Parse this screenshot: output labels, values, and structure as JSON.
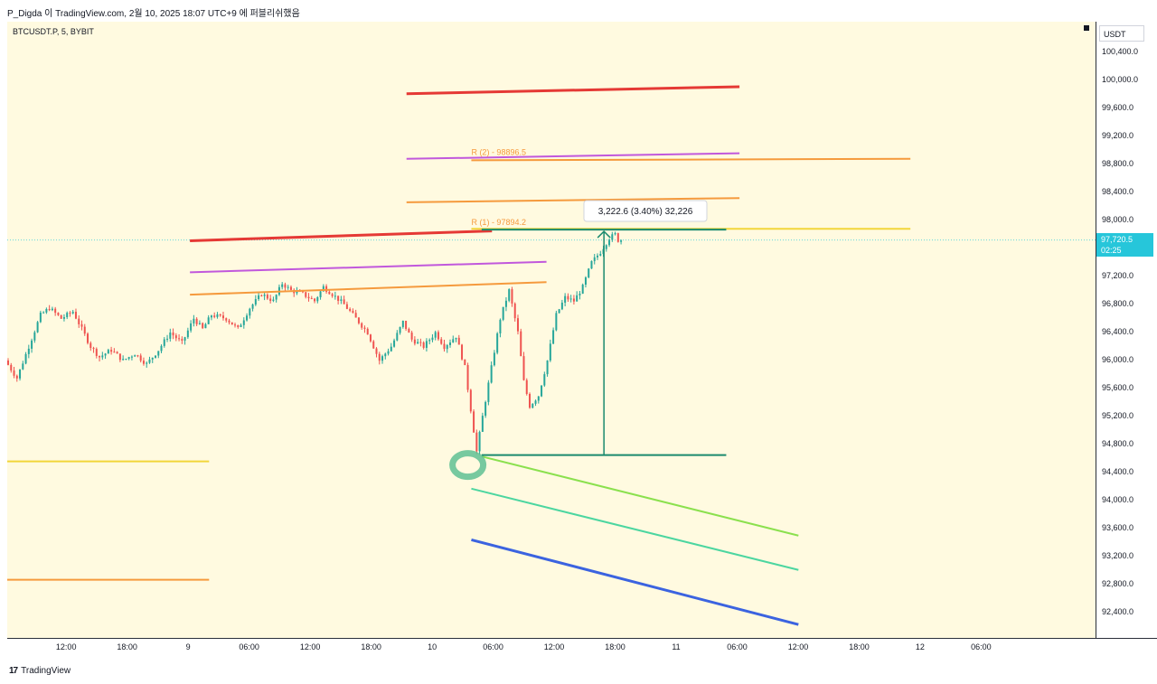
{
  "header": {
    "caption": "P_Digda 이 TradingView.com, 2월 10, 2025 18:07 UTC+9 에 퍼블리쉬했음"
  },
  "chart_header": {
    "symbol": "BTCUSDT.P, 5, BYBIT"
  },
  "footer": {
    "brand": "TradingView",
    "logo": "tv-logo-icon"
  },
  "price_axis": {
    "unit": "USDT",
    "ticks": [
      "100,400.0",
      "100,000.0",
      "99,600.0",
      "99,200.0",
      "98,800.0",
      "98,400.0",
      "98,000.0",
      "97,600.0",
      "97,200.0",
      "96,800.0",
      "96,400.0",
      "96,000.0",
      "95,600.0",
      "95,200.0",
      "94,800.0",
      "94,400.0",
      "94,000.0",
      "93,600.0",
      "93,200.0",
      "92,800.0",
      "92,400.0"
    ],
    "last_price": "97,720.5",
    "countdown": "02:25"
  },
  "time_axis": {
    "ticks": [
      "12:00",
      "18:00",
      "9",
      "06:00",
      "12:00",
      "18:00",
      "10",
      "06:00",
      "12:00",
      "18:00",
      "11",
      "06:00",
      "12:00",
      "18:00",
      "12",
      "06:00"
    ]
  },
  "colors": {
    "background": "#fffae0",
    "up": "#26a69a",
    "down": "#ef5350",
    "last_price": "#26c6da",
    "red_line": "#e53935",
    "purple_line": "#c158dc",
    "orange_line": "#f59a3d",
    "yellow_line": "#f2d63b",
    "measure": "#1a8a6e",
    "lightgreen": "#8be04e",
    "teal_line": "#4cd6a0",
    "blue_line": "#3b63e0"
  },
  "chart_data": {
    "type": "candlestick",
    "symbol": "BTCUSDT.P",
    "interval": "5",
    "exchange": "BYBIT",
    "ylim": [
      92000,
      100600
    ],
    "last_price": 97720.5,
    "price_path": [
      [
        0,
        96000
      ],
      [
        4,
        95750
      ],
      [
        8,
        96200
      ],
      [
        12,
        96650
      ],
      [
        15,
        96750
      ],
      [
        19,
        96600
      ],
      [
        23,
        96700
      ],
      [
        26,
        96450
      ],
      [
        29,
        96200
      ],
      [
        32,
        96050
      ],
      [
        36,
        96150
      ],
      [
        40,
        96000
      ],
      [
        44,
        96100
      ],
      [
        48,
        95950
      ],
      [
        52,
        96150
      ],
      [
        56,
        96400
      ],
      [
        60,
        96250
      ],
      [
        64,
        96600
      ],
      [
        67,
        96450
      ],
      [
        70,
        96650
      ],
      [
        75,
        96600
      ],
      [
        79,
        96450
      ],
      [
        83,
        96750
      ],
      [
        87,
        96950
      ],
      [
        91,
        96850
      ],
      [
        94,
        97100
      ],
      [
        97,
        97000
      ],
      [
        101,
        96950
      ],
      [
        105,
        96850
      ],
      [
        108,
        97050
      ],
      [
        111,
        96950
      ],
      [
        115,
        96800
      ],
      [
        119,
        96600
      ],
      [
        123,
        96400
      ],
      [
        127,
        96000
      ],
      [
        131,
        96200
      ],
      [
        135,
        96550
      ],
      [
        138,
        96300
      ],
      [
        142,
        96200
      ],
      [
        146,
        96400
      ],
      [
        149,
        96200
      ],
      [
        153,
        96350
      ],
      [
        156,
        95900
      ],
      [
        159,
        95000
      ],
      [
        160,
        94700
      ],
      [
        162,
        95200
      ],
      [
        165,
        95900
      ],
      [
        168,
        96600
      ],
      [
        171,
        97000
      ],
      [
        174,
        96400
      ],
      [
        176,
        95700
      ],
      [
        178,
        95350
      ],
      [
        181,
        95500
      ],
      [
        184,
        96000
      ],
      [
        187,
        96650
      ],
      [
        190,
        96900
      ],
      [
        193,
        96850
      ],
      [
        196,
        97050
      ],
      [
        199,
        97400
      ],
      [
        202,
        97550
      ],
      [
        205,
        97750
      ],
      [
        207,
        97800
      ],
      [
        208,
        97720
      ]
    ],
    "overlays": [
      {
        "name": "red-line-1",
        "t1": 135.5,
        "p1": 99810,
        "t2": 248.5,
        "p2": 99910,
        "color": "#e53935"
      },
      {
        "name": "red-line-2",
        "t1": 62,
        "p1": 97710,
        "t2": 164.5,
        "p2": 97850,
        "color": "#e53935"
      },
      {
        "name": "purple-line-1",
        "t1": 135.5,
        "p1": 98880,
        "t2": 248.5,
        "p2": 98960,
        "color": "#c158dc"
      },
      {
        "name": "purple-line-2",
        "t1": 62,
        "p1": 97260,
        "t2": 183,
        "p2": 97410,
        "color": "#c158dc"
      },
      {
        "name": "orange-line-1",
        "t1": 157.5,
        "p1": 98860,
        "t2": 306.5,
        "p2": 98880,
        "color": "#f59a3d"
      },
      {
        "name": "orange-line-2",
        "t1": 135.5,
        "p1": 98260,
        "t2": 248.5,
        "p2": 98320,
        "color": "#f59a3d"
      },
      {
        "name": "orange-line-3",
        "t1": 62,
        "p1": 96940,
        "t2": 183,
        "p2": 97120,
        "color": "#f59a3d"
      },
      {
        "name": "orange-line-4",
        "t1": 0,
        "p1": 92870,
        "t2": 68.5,
        "p2": 92870,
        "color": "#f59a3d"
      },
      {
        "name": "yellow-line-1",
        "t1": 157.5,
        "p1": 97880,
        "t2": 306.5,
        "p2": 97880,
        "color": "#f2d63b"
      },
      {
        "name": "yellow-line-2",
        "t1": 0,
        "p1": 94560,
        "t2": 68.5,
        "p2": 94560,
        "color": "#f2d63b"
      },
      {
        "name": "lightgreen-line",
        "t1": 161,
        "p1": 94630,
        "t2": 268.5,
        "p2": 93500,
        "color": "#8be04e"
      },
      {
        "name": "teal-line",
        "t1": 157.5,
        "p1": 94170,
        "t2": 268.5,
        "p2": 93010,
        "color": "#4cd6a0"
      },
      {
        "name": "blue-line",
        "t1": 157.5,
        "p1": 93440,
        "t2": 268.5,
        "p2": 92230,
        "color": "#3b63e0"
      }
    ],
    "measure": {
      "low": 94650,
      "high": 97870,
      "t_start": 161,
      "t_end": 244,
      "label": "3,222.6 (3.40%) 32,226"
    },
    "annotations": [
      {
        "text": "R (2) - 98896.5",
        "t": 157.5,
        "p": 98896.5
      },
      {
        "text": "R (1) - 97894.2",
        "t": 157.5,
        "p": 97894.2
      }
    ],
    "highlight": {
      "name": "low-point-circle",
      "t": 160,
      "p": 94650
    }
  }
}
